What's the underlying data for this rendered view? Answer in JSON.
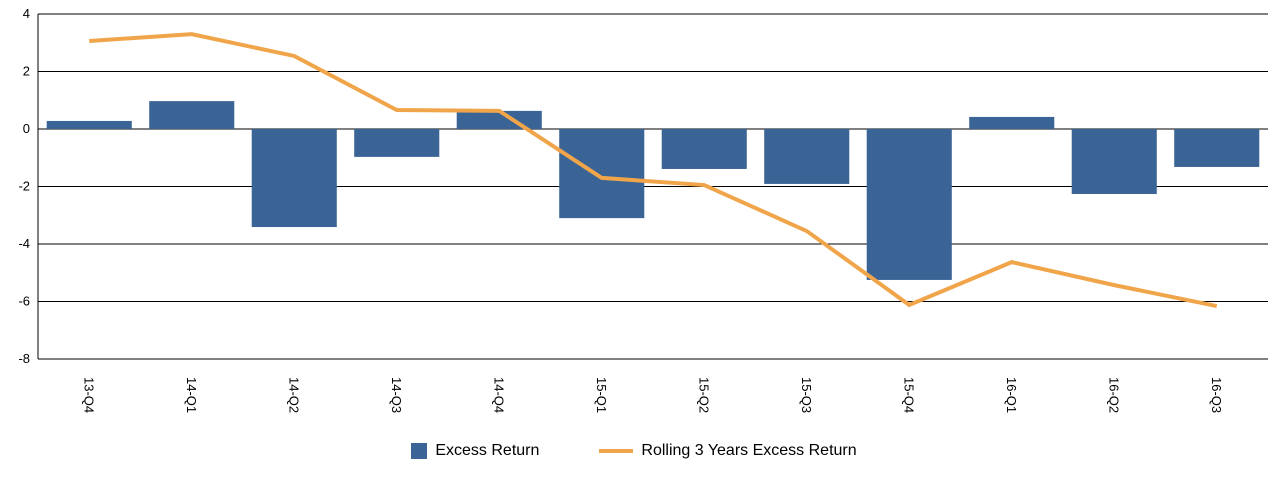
{
  "chart_data": {
    "type": "bar",
    "categories": [
      "13-Q4",
      "14-Q1",
      "14-Q2",
      "14-Q3",
      "14-Q4",
      "15-Q1",
      "15-Q2",
      "15-Q3",
      "15-Q4",
      "16-Q1",
      "16-Q2",
      "16-Q3"
    ],
    "series": [
      {
        "name": "Excess Return",
        "type": "bar",
        "color": "#3a6496",
        "values": [
          0.28,
          0.97,
          -3.41,
          -0.97,
          0.63,
          -3.1,
          -1.39,
          -1.91,
          -5.25,
          0.42,
          -2.26,
          -1.32
        ]
      },
      {
        "name": "Rolling 3 Years Excess Return",
        "type": "line",
        "color": "#f0a54a",
        "values": [
          3.06,
          3.3,
          2.54,
          0.66,
          0.63,
          -1.7,
          -1.95,
          -3.55,
          -6.12,
          -4.63,
          -5.43,
          -6.16
        ]
      }
    ],
    "ylim": [
      -8,
      4
    ],
    "yticks": [
      -8,
      -6,
      -4,
      -2,
      0,
      2,
      4
    ],
    "grid": true,
    "legend": "bottom"
  }
}
